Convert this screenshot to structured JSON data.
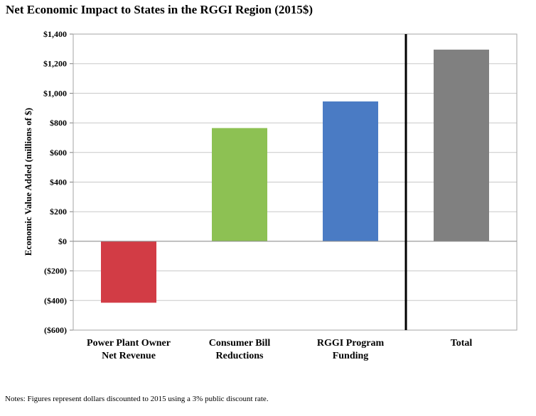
{
  "chart_data": {
    "type": "bar",
    "title": "Net Economic Impact to States in the RGGI Region (2015$)",
    "ylabel": "Economic Value Added (millions of $)",
    "xlabel": "",
    "categories": [
      [
        "Power Plant Owner",
        "Net Revenue"
      ],
      [
        "Consumer Bill",
        "Reductions"
      ],
      [
        "RGGI Program",
        "Funding"
      ],
      [
        "Total"
      ]
    ],
    "values": [
      -415,
      765,
      945,
      1295
    ],
    "colors": [
      "#d23c45",
      "#8dc153",
      "#4a7bc4",
      "#808080"
    ],
    "ylim": [
      -600,
      1400
    ],
    "yticks": [
      -600,
      -400,
      -200,
      0,
      200,
      400,
      600,
      800,
      1000,
      1200,
      1400
    ],
    "ytick_labels": [
      "($600)",
      "($400)",
      "($200)",
      "$0",
      "$200",
      "$400",
      "$600",
      "$800",
      "$1,000",
      "$1,200",
      "$1,400"
    ],
    "grid": true,
    "separator_after_category": 3,
    "note": "Notes: Figures represent dollars discounted to 2015 using a 3% public discount rate."
  }
}
